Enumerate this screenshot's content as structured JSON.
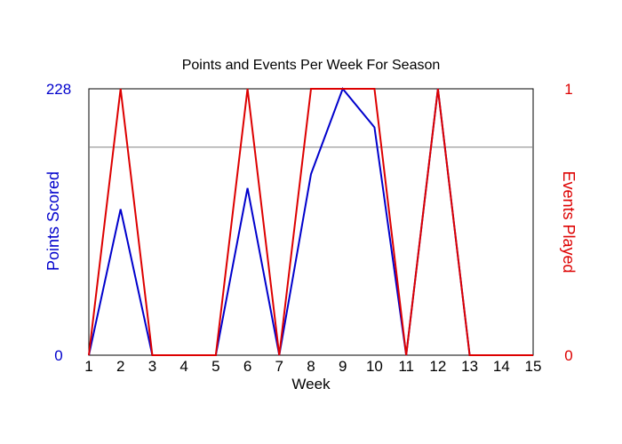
{
  "chart_data": {
    "type": "line",
    "title": "Points and Events Per Week For Season",
    "xlabel": "Week",
    "ylabel_left": "Points Scored",
    "ylabel_right": "Events Played",
    "x": [
      1,
      2,
      3,
      4,
      5,
      6,
      7,
      8,
      9,
      10,
      11,
      12,
      13,
      14,
      15
    ],
    "x_tick_labels": [
      "1",
      "2",
      "3",
      "4",
      "5",
      "6",
      "7",
      "8",
      "9",
      "10",
      "11",
      "12",
      "13",
      "14",
      "15"
    ],
    "y_left_range": [
      0,
      228
    ],
    "y_left_tick_labels": [
      "0",
      "228"
    ],
    "y_right_range": [
      0,
      1
    ],
    "y_right_tick_labels": [
      "0",
      "1"
    ],
    "reference_line_left": 178,
    "series": [
      {
        "name": "Points Scored",
        "axis": "left",
        "color": "#0000cc",
        "values": [
          0,
          125,
          0,
          0,
          0,
          143,
          0,
          155,
          228,
          195,
          0,
          228,
          0,
          0,
          0
        ]
      },
      {
        "name": "Events Played",
        "axis": "right",
        "color": "#dd0000",
        "values": [
          0,
          1,
          0,
          0,
          0,
          1,
          0,
          1,
          1,
          1,
          0,
          1,
          0,
          0,
          0
        ]
      }
    ],
    "colors": {
      "left_axis": "#0000cc",
      "right_axis": "#dd0000",
      "frame": "#000000",
      "reference_line": "#808080"
    },
    "grid": false
  }
}
